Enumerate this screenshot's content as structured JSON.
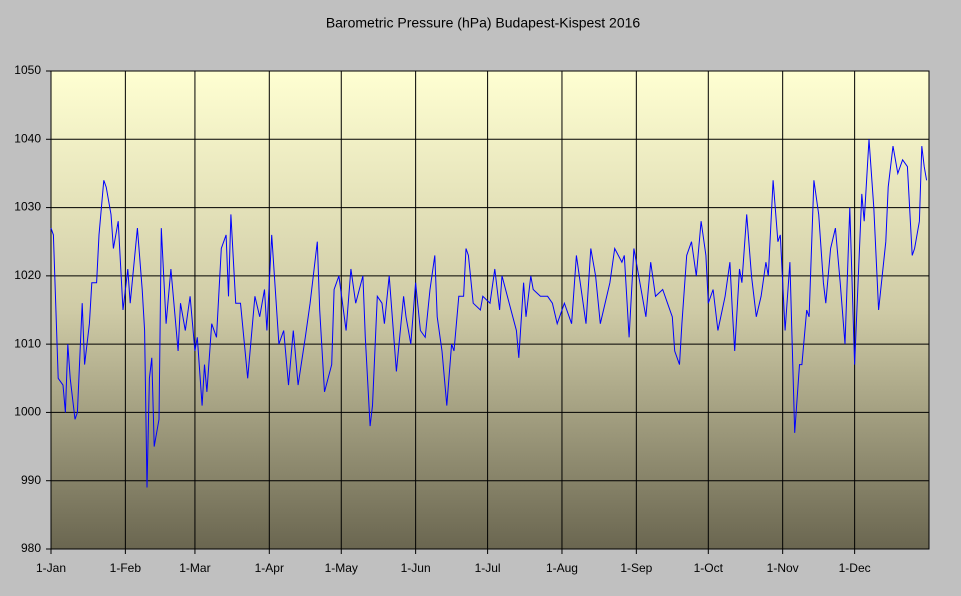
{
  "chart_data": {
    "type": "line",
    "title": "Barometric Pressure (hPa) Budapest-Kispest 2016",
    "x": [
      0,
      1,
      3,
      5,
      6,
      7,
      8,
      10,
      11,
      13,
      14,
      16,
      17,
      19,
      20,
      22,
      23,
      25,
      26,
      28,
      30,
      32,
      33,
      36,
      38,
      39,
      40,
      41,
      42,
      43,
      45,
      46,
      48,
      50,
      53,
      54,
      56,
      58,
      60,
      61,
      63,
      64,
      65,
      67,
      69,
      71,
      73,
      74,
      75,
      77,
      79,
      82,
      85,
      87,
      89,
      90,
      92,
      95,
      97,
      99,
      101,
      103,
      106,
      108,
      111,
      112,
      114,
      117,
      118,
      120,
      123,
      125,
      127,
      130,
      131,
      133,
      134,
      136,
      138,
      139,
      141,
      144,
      147,
      148,
      150,
      152,
      154,
      156,
      158,
      160,
      161,
      163,
      165,
      167,
      168,
      170,
      172,
      173,
      174,
      176,
      179,
      180,
      183,
      185,
      187,
      188,
      191,
      194,
      195,
      197,
      198,
      200,
      201,
      204,
      207,
      209,
      211,
      214,
      217,
      219,
      223,
      225,
      227,
      229,
      231,
      233,
      235,
      238,
      239,
      241,
      243,
      245,
      248,
      250,
      252,
      255,
      257,
      259,
      260,
      262,
      263,
      265,
      267,
      269,
      271,
      273,
      274,
      276,
      278,
      281,
      283,
      284,
      285,
      287,
      288,
      290,
      292,
      294,
      296,
      298,
      299,
      300,
      301,
      303,
      304,
      306,
      308,
      310,
      312,
      313,
      315,
      316,
      318,
      320,
      322,
      323,
      325,
      327,
      329,
      331,
      333,
      335,
      338,
      339,
      341,
      343,
      345,
      348,
      349,
      351,
      353,
      355,
      357,
      359,
      360,
      362,
      363,
      364,
      365
    ],
    "values": [
      1027,
      1026,
      1005,
      1004,
      1000,
      1010,
      1005,
      999,
      1000,
      1016,
      1007,
      1013,
      1019,
      1019,
      1026,
      1034,
      1033,
      1029,
      1024,
      1028,
      1015,
      1021,
      1016,
      1027,
      1018,
      1012,
      989,
      1005,
      1008,
      995,
      999,
      1027,
      1013,
      1021,
      1009,
      1016,
      1012,
      1017,
      1009,
      1011,
      1001,
      1007,
      1003,
      1013,
      1011,
      1024,
      1026,
      1017,
      1029,
      1016,
      1016,
      1005,
      1017,
      1014,
      1018,
      1012,
      1026,
      1010,
      1012,
      1004,
      1012,
      1004,
      1011,
      1016,
      1025,
      1015,
      1003,
      1007,
      1018,
      1020,
      1012,
      1021,
      1016,
      1020,
      1011,
      998,
      1001,
      1017,
      1016,
      1013,
      1020,
      1006,
      1017,
      1014,
      1010,
      1019,
      1012,
      1011,
      1018,
      1023,
      1014,
      1009,
      1001,
      1010,
      1009,
      1017,
      1017,
      1024,
      1023,
      1016,
      1015,
      1017,
      1016,
      1021,
      1015,
      1020,
      1016,
      1012,
      1008,
      1019,
      1014,
      1020,
      1018,
      1017,
      1017,
      1016,
      1013,
      1016,
      1013,
      1023,
      1013,
      1024,
      1020,
      1013,
      1016,
      1019,
      1024,
      1022,
      1023,
      1011,
      1024,
      1020,
      1014,
      1022,
      1017,
      1018,
      1016,
      1014,
      1009,
      1007,
      1013,
      1023,
      1025,
      1020,
      1028,
      1023,
      1016,
      1018,
      1012,
      1017,
      1022,
      1015,
      1009,
      1021,
      1019,
      1029,
      1020,
      1014,
      1017,
      1022,
      1020,
      1027,
      1034,
      1025,
      1026,
      1012,
      1022,
      997,
      1007,
      1007,
      1015,
      1014,
      1034,
      1029,
      1019,
      1016,
      1024,
      1027,
      1019,
      1010,
      1030,
      1007,
      1032,
      1028,
      1040,
      1030,
      1015,
      1025,
      1033,
      1039,
      1035,
      1037,
      1036,
      1023,
      1024,
      1028,
      1039,
      1036,
      1034
    ],
    "color": "#0000ff",
    "xlim": [
      0,
      366
    ],
    "xticks": [
      {
        "value": 0,
        "label": "1-Jan"
      },
      {
        "value": 31,
        "label": "1-Feb"
      },
      {
        "value": 60,
        "label": "1-Mar"
      },
      {
        "value": 91,
        "label": "1-Apr"
      },
      {
        "value": 121,
        "label": "1-May"
      },
      {
        "value": 152,
        "label": "1-Jun"
      },
      {
        "value": 182,
        "label": "1-Jul"
      },
      {
        "value": 213,
        "label": "1-Aug"
      },
      {
        "value": 244,
        "label": "1-Sep"
      },
      {
        "value": 274,
        "label": "1-Oct"
      },
      {
        "value": 305,
        "label": "1-Nov"
      },
      {
        "value": 335,
        "label": "1-Dec"
      }
    ],
    "ylim": [
      980,
      1050
    ],
    "yticks": [
      980,
      990,
      1000,
      1010,
      1020,
      1030,
      1040,
      1050
    ],
    "grid": true
  }
}
